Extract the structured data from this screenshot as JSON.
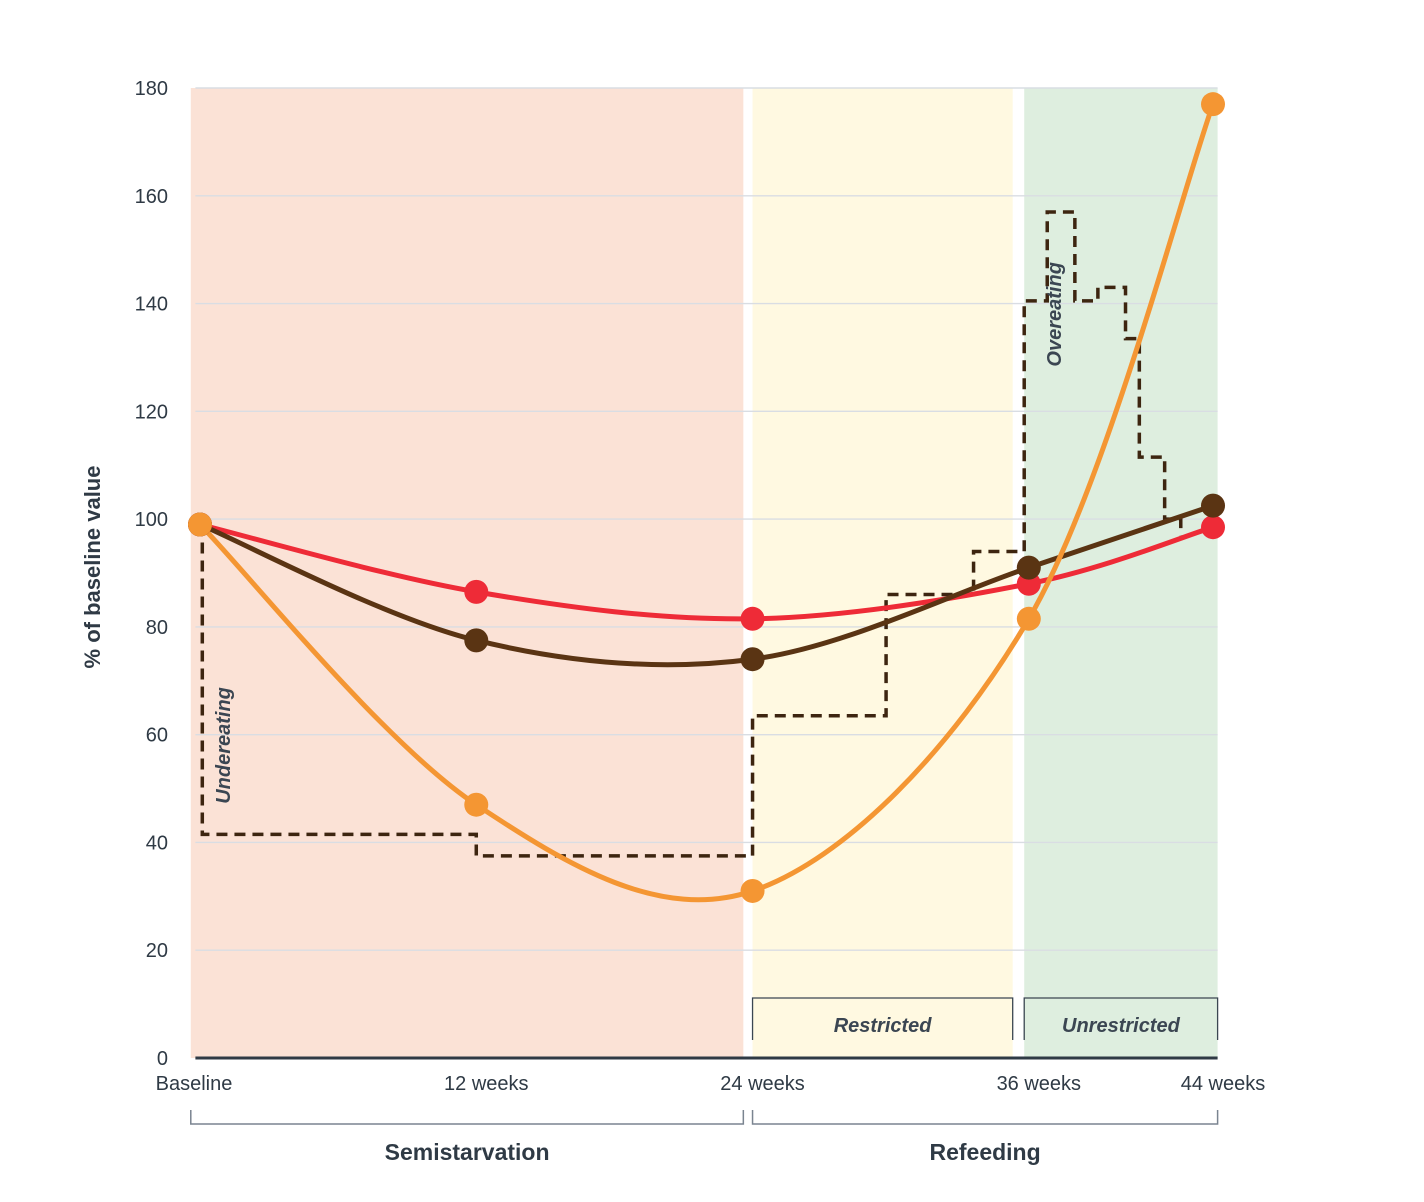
{
  "chart_data": {
    "type": "line",
    "title": "",
    "ylabel": "% of baseline value",
    "xlabel": "",
    "ylim": [
      0,
      180
    ],
    "yticks": [
      0,
      20,
      40,
      60,
      80,
      100,
      120,
      140,
      160,
      180
    ],
    "xlim": [
      -0.2,
      44.2
    ],
    "x_tick_values": [
      0,
      12,
      24,
      36,
      44
    ],
    "x_tick_labels": [
      "Baseline",
      "12 weeks",
      "24 weeks",
      "36 weeks",
      "44 weeks"
    ],
    "grid": true,
    "regions": [
      {
        "name": "semistarvation",
        "x": [
          -0.4,
          23.6
        ],
        "color": "#fbe2d6"
      },
      {
        "name": "restricted",
        "x": [
          24.0,
          35.3
        ],
        "color": "#fff9e1"
      },
      {
        "name": "unrestricted",
        "x": [
          35.8,
          44.2
        ],
        "color": "#deeedf"
      }
    ],
    "phases": [
      {
        "label": "Semistarvation",
        "x": [
          -0.4,
          23.6
        ]
      },
      {
        "label": "Refeeding",
        "x": [
          24.0,
          44.2
        ]
      }
    ],
    "subphases": [
      {
        "label": "Restricted",
        "x": [
          24.0,
          35.3
        ]
      },
      {
        "label": "Unrestricted",
        "x": [
          35.8,
          44.2
        ]
      }
    ],
    "annotations": [
      {
        "label": "Undereating",
        "x": 1.3,
        "y": 58
      },
      {
        "label": "Overeating",
        "x": 37.4,
        "y": 138
      }
    ],
    "series": [
      {
        "color": "#ee2b37",
        "x": [
          0,
          12,
          24,
          36,
          44
        ],
        "values": [
          99,
          86.5,
          81.5,
          88,
          98.5
        ]
      },
      {
        "color": "#5a3413",
        "x": [
          0,
          12,
          24,
          36,
          44
        ],
        "values": [
          99,
          77.5,
          74,
          91,
          102.5
        ]
      },
      {
        "color": "#f49633",
        "x": [
          0,
          12,
          24,
          36,
          44
        ],
        "values": [
          99,
          47,
          31,
          81.5,
          177
        ]
      }
    ],
    "intake_step": {
      "color": "#3d2510",
      "points": [
        [
          0.1,
          99
        ],
        [
          0.1,
          41.5
        ],
        [
          12,
          41.5
        ],
        [
          12,
          37.5
        ],
        [
          24,
          37.5
        ],
        [
          24,
          63.5
        ],
        [
          29.8,
          63.5
        ],
        [
          29.8,
          86
        ],
        [
          33.6,
          86
        ],
        [
          33.6,
          94
        ],
        [
          35.8,
          94
        ],
        [
          35.8,
          140.5
        ],
        [
          36.8,
          140.5
        ],
        [
          36.8,
          157
        ],
        [
          38,
          157
        ],
        [
          38,
          140.5
        ],
        [
          39,
          140.5
        ],
        [
          39,
          143
        ],
        [
          40.2,
          143
        ],
        [
          40.2,
          133.5
        ],
        [
          40.8,
          133.5
        ],
        [
          40.8,
          111.5
        ],
        [
          41.9,
          111.5
        ],
        [
          41.9,
          100
        ],
        [
          42.6,
          100
        ],
        [
          42.6,
          97
        ]
      ]
    }
  }
}
